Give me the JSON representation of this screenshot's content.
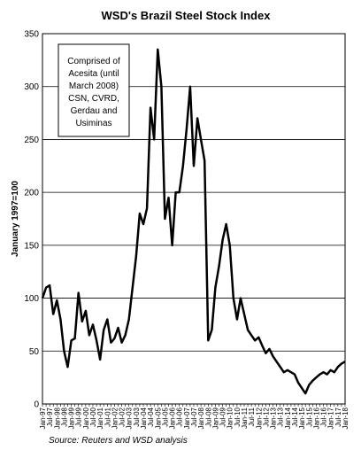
{
  "chart_data": {
    "type": "line",
    "title": "WSD's Brazil Steel Stock Index",
    "y_label": "January 1997=100",
    "annotation": [
      "Comprised of",
      "Acesita (until",
      "March 2008)",
      "CSN, CVRD,",
      "Gerdau and",
      "Usiminas"
    ],
    "source": "Source:  Reuters and WSD analysis",
    "categories": [
      "Jan-97",
      null,
      "Jul-97",
      null,
      "Jan-98",
      null,
      "Jul-98",
      null,
      "Jan-99",
      null,
      "Jul-99",
      null,
      "Jan-00",
      null,
      "Jul-00",
      null,
      "Jan-01",
      null,
      "Jul-01",
      null,
      "Jan-02",
      null,
      "Jul-02",
      null,
      "Jan-03",
      null,
      "Jul-03",
      null,
      "Jan-04",
      null,
      "Jul-04",
      null,
      "Jan-05",
      null,
      "Jul-05",
      null,
      "Jan-06",
      null,
      "Jul-06",
      null,
      "Jan-07",
      null,
      "Jul-07",
      null,
      "Jan-08",
      null,
      "Jul-08",
      null,
      "Jan-09",
      null,
      "Jul-09",
      null,
      "Jan-10",
      null,
      "Jul-10",
      null,
      "Jan-11",
      null,
      "Jul-11",
      null,
      "Jan-12",
      null,
      "Jul-12",
      null,
      "Jan-13",
      null,
      "Jul-13",
      null,
      "Jan-14",
      null,
      "Jul-14",
      null,
      "Jan-15",
      null,
      "Jul-15",
      null,
      "Jan-16",
      null,
      "Jul-16",
      null,
      "Jan-17",
      null,
      "Jul-17",
      null,
      "Jan-18"
    ],
    "series": [
      {
        "name": "WSD's Brazil Steel Stock Index",
        "color": "#000000",
        "values": [
          100,
          110,
          112,
          85,
          98,
          80,
          50,
          35,
          60,
          62,
          105,
          78,
          88,
          65,
          75,
          60,
          42,
          70,
          80,
          58,
          62,
          72,
          58,
          65,
          80,
          110,
          140,
          180,
          170,
          185,
          280,
          250,
          335,
          300,
          175,
          195,
          150,
          200,
          200,
          225,
          260,
          300,
          225,
          270,
          250,
          230,
          60,
          70,
          110,
          130,
          155,
          170,
          150,
          100,
          80,
          100,
          85,
          70,
          65,
          60,
          63,
          55,
          48,
          52,
          45,
          40,
          35,
          30,
          32,
          30,
          28,
          20,
          15,
          10,
          18,
          22,
          25,
          28,
          30,
          28,
          32,
          30,
          35,
          38,
          40
        ]
      }
    ],
    "ylim": [
      0,
      350
    ],
    "yticks": [
      0,
      50,
      100,
      150,
      200,
      250,
      300,
      350
    ],
    "grid": true
  }
}
